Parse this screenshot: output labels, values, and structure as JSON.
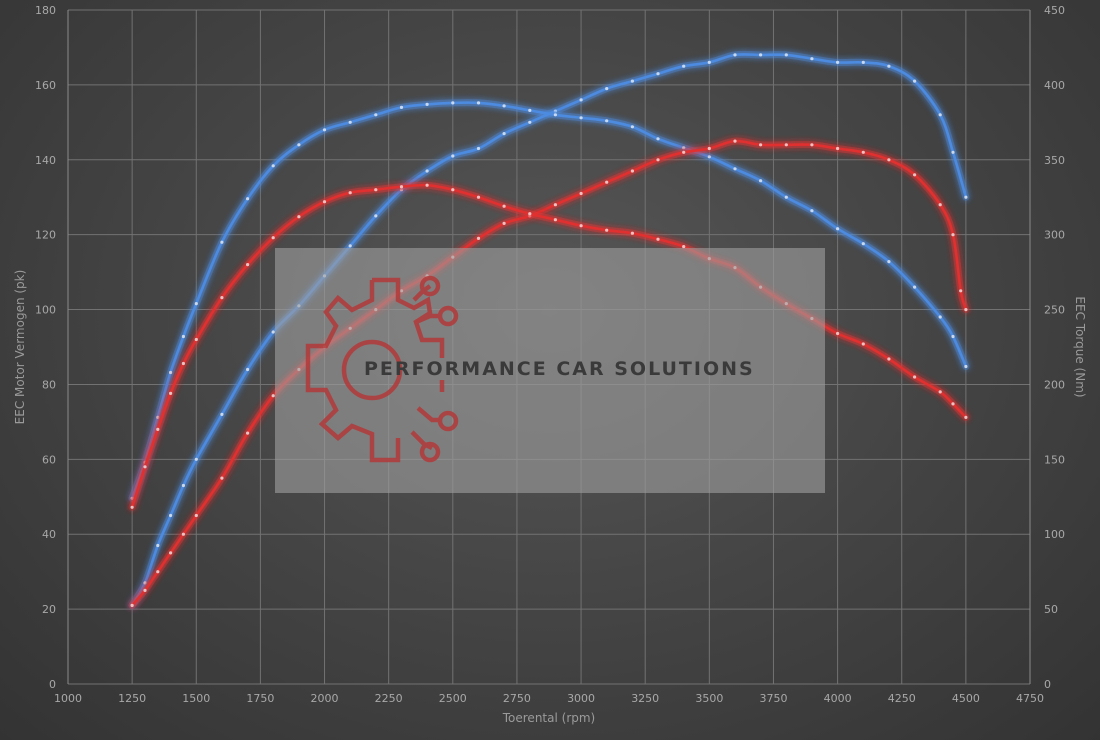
{
  "chart_data": {
    "type": "line",
    "xlabel": "Toerental (rpm)",
    "ylabel_left": "EEC Motor Vermogen (pk)",
    "ylabel_right": "EEC Torque (Nm)",
    "xlim": [
      1000,
      4750
    ],
    "ylim_left": [
      0,
      180
    ],
    "ylim_right": [
      0,
      450
    ],
    "x_ticks": [
      1000,
      1250,
      1500,
      1750,
      2000,
      2250,
      2500,
      2750,
      3000,
      3250,
      3500,
      3750,
      4000,
      4250,
      4500,
      4750
    ],
    "y_left_ticks": [
      0,
      20,
      40,
      60,
      80,
      100,
      120,
      140,
      160,
      180
    ],
    "y_right_ticks": [
      0,
      50,
      100,
      150,
      200,
      250,
      300,
      350,
      400,
      450
    ],
    "grid": true,
    "colors": {
      "tuned": "#4d8be0",
      "stock": "#e03030"
    },
    "series": [
      {
        "id": "tuned-power",
        "axis": "left",
        "color": "#4d8be0",
        "x": [
          1250,
          1300,
          1350,
          1400,
          1450,
          1500,
          1600,
          1700,
          1800,
          1900,
          2000,
          2100,
          2200,
          2300,
          2400,
          2500,
          2600,
          2700,
          2800,
          2900,
          3000,
          3100,
          3200,
          3300,
          3400,
          3500,
          3600,
          3700,
          3800,
          3900,
          4000,
          4100,
          4200,
          4300,
          4400,
          4450,
          4500
        ],
        "y": [
          21,
          27,
          37,
          45,
          53,
          60,
          72,
          84,
          94,
          101,
          109,
          117,
          125,
          132,
          137,
          141,
          143,
          147,
          150,
          153,
          156,
          159,
          161,
          163,
          165,
          166,
          168,
          168,
          168,
          167,
          166,
          166,
          165,
          161,
          152,
          142,
          130
        ]
      },
      {
        "id": "tuned-torque",
        "axis": "right",
        "color": "#4d8be0",
        "x": [
          1250,
          1300,
          1350,
          1400,
          1450,
          1500,
          1600,
          1700,
          1800,
          1900,
          2000,
          2100,
          2200,
          2300,
          2400,
          2500,
          2600,
          2700,
          2800,
          2900,
          3000,
          3100,
          3200,
          3300,
          3400,
          3500,
          3600,
          3700,
          3800,
          3900,
          4000,
          4100,
          4200,
          4300,
          4400,
          4450,
          4500
        ],
        "y": [
          124,
          148,
          178,
          208,
          232,
          254,
          295,
          324,
          346,
          360,
          370,
          375,
          380,
          385,
          387,
          388,
          388,
          386,
          383,
          380,
          378,
          376,
          372,
          364,
          358,
          352,
          344,
          336,
          325,
          316,
          304,
          294,
          282,
          265,
          245,
          232,
          212
        ]
      },
      {
        "id": "stock-power",
        "axis": "left",
        "color": "#e03030",
        "x": [
          1250,
          1300,
          1350,
          1400,
          1450,
          1500,
          1600,
          1700,
          1800,
          1900,
          2000,
          2100,
          2200,
          2300,
          2400,
          2500,
          2600,
          2700,
          2800,
          2900,
          3000,
          3100,
          3200,
          3300,
          3400,
          3500,
          3600,
          3700,
          3800,
          3900,
          4000,
          4100,
          4200,
          4300,
          4400,
          4450,
          4480,
          4500
        ],
        "y": [
          21,
          25,
          30,
          35,
          40,
          45,
          55,
          67,
          77,
          84,
          90,
          95,
          100,
          105,
          109,
          114,
          119,
          123,
          125,
          128,
          131,
          134,
          137,
          140,
          142,
          143,
          145,
          144,
          144,
          144,
          143,
          142,
          140,
          136,
          128,
          120,
          105,
          100
        ]
      },
      {
        "id": "stock-torque",
        "axis": "right",
        "color": "#e03030",
        "x": [
          1250,
          1300,
          1350,
          1400,
          1450,
          1500,
          1600,
          1700,
          1800,
          1900,
          2000,
          2100,
          2200,
          2300,
          2400,
          2500,
          2600,
          2700,
          2800,
          2900,
          3000,
          3100,
          3200,
          3300,
          3400,
          3500,
          3600,
          3700,
          3800,
          3900,
          4000,
          4100,
          4200,
          4300,
          4400,
          4450,
          4500
        ],
        "y": [
          118,
          145,
          170,
          194,
          214,
          230,
          258,
          280,
          298,
          312,
          322,
          328,
          330,
          332,
          333,
          330,
          325,
          319,
          314,
          310,
          306,
          303,
          301,
          297,
          292,
          284,
          278,
          265,
          254,
          244,
          234,
          227,
          217,
          205,
          195,
          187,
          178
        ]
      }
    ]
  },
  "watermark": {
    "text": "PERFORMANCE CAR SOLUTIONS",
    "logo_icon": "gear-circuit-icon",
    "logo_color": "#b23a3a",
    "box_color": "#a0a0a0"
  }
}
